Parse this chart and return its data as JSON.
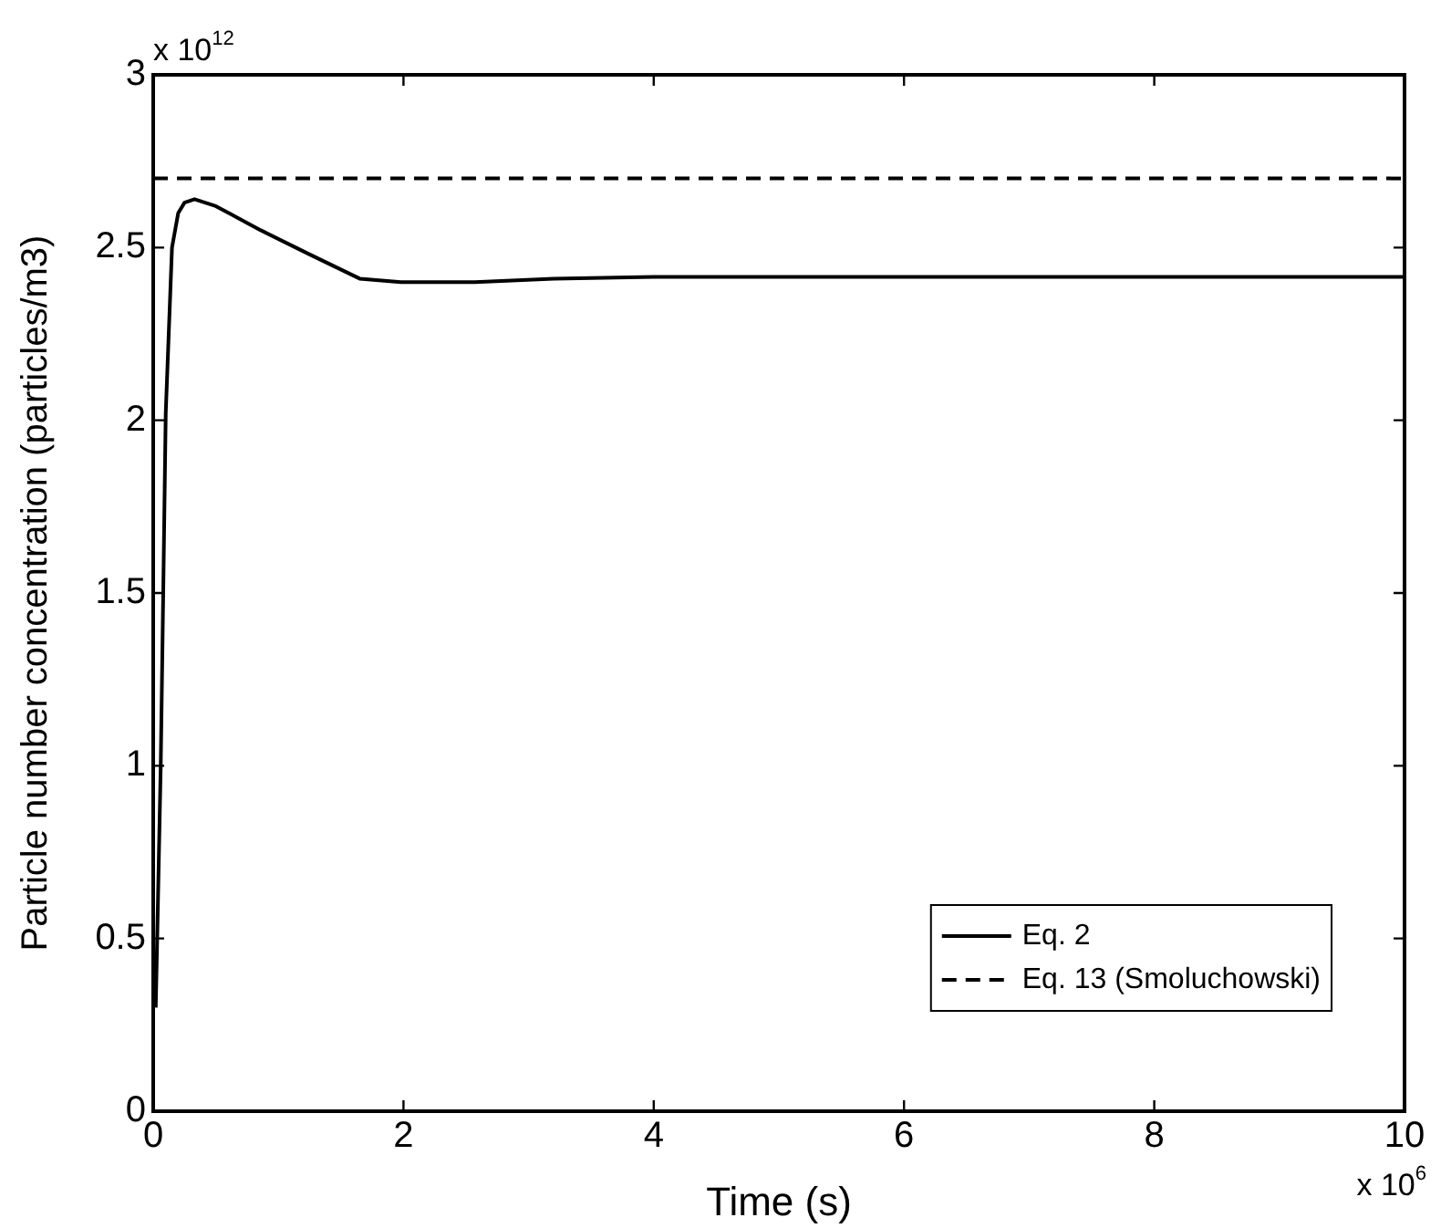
{
  "chart_data": {
    "type": "line",
    "xlabel": "Time (s)",
    "ylabel": "Particle number concentration (particles/m3)",
    "xlim": [
      0,
      10
    ],
    "xticks": [
      0,
      2,
      4,
      6,
      8,
      10
    ],
    "ylim": [
      0,
      3
    ],
    "yticks": [
      0,
      0.5,
      1,
      1.5,
      2,
      2.5,
      3
    ],
    "annotations": [
      "x 10$^{12}$",
      "x 10$^{6}$"
    ],
    "legend": "bottom right",
    "grid": false,
    "series": [
      {
        "name": "Eq. 2",
        "color": "#000000",
        "line_style": "solid",
        "x": [
          0.02,
          0.03,
          0.06,
          0.08,
          0.1,
          0.15,
          0.2,
          0.25,
          0.33,
          0.5,
          0.86,
          1.25,
          1.65,
          1.98,
          2.57,
          3.2,
          4,
          6,
          8,
          10
        ],
        "values": [
          0.3,
          0.47,
          1,
          1.5,
          2.02,
          2.5,
          2.6,
          2.63,
          2.64,
          2.62,
          2.55,
          2.48,
          2.41,
          2.4,
          2.4,
          2.41,
          2.415,
          2.415,
          2.415,
          2.415
        ]
      },
      {
        "name": "Eq. 13 (Smoluchowski)",
        "color": "#000000",
        "line_style": "dashed",
        "x": [
          0,
          10
        ],
        "values": [
          2.7,
          2.7
        ]
      }
    ]
  }
}
